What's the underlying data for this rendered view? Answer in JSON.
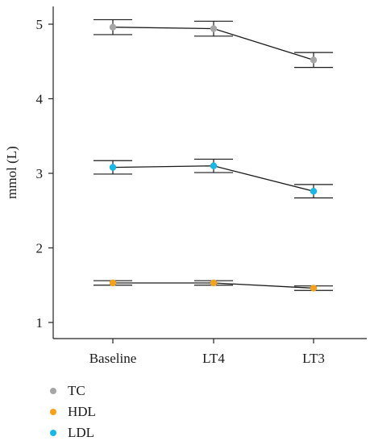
{
  "chart_data": {
    "type": "line",
    "categories": [
      "Baseline",
      "LT4",
      "LT3"
    ],
    "ylabel": "mmol (L)",
    "xlabel": "",
    "ylim": [
      0.8,
      5.3
    ],
    "yticks": [
      1,
      2,
      3,
      4,
      5
    ],
    "grid": false,
    "legend_position": "bottom-left",
    "series": [
      {
        "name": "TC",
        "color": "#a6a6a6",
        "values": [
          4.96,
          4.94,
          4.52
        ],
        "err_low": [
          4.86,
          4.84,
          4.42
        ],
        "err_high": [
          5.06,
          5.04,
          4.62
        ]
      },
      {
        "name": "HDL",
        "color": "#f5a11c",
        "values": [
          1.53,
          1.53,
          1.46
        ],
        "err_low": [
          1.5,
          1.5,
          1.43
        ],
        "err_high": [
          1.56,
          1.56,
          1.49
        ]
      },
      {
        "name": "LDL",
        "color": "#1ab6e5",
        "values": [
          3.08,
          3.1,
          2.76
        ],
        "err_low": [
          2.99,
          3.01,
          2.67
        ],
        "err_high": [
          3.17,
          3.19,
          2.85
        ]
      }
    ]
  }
}
